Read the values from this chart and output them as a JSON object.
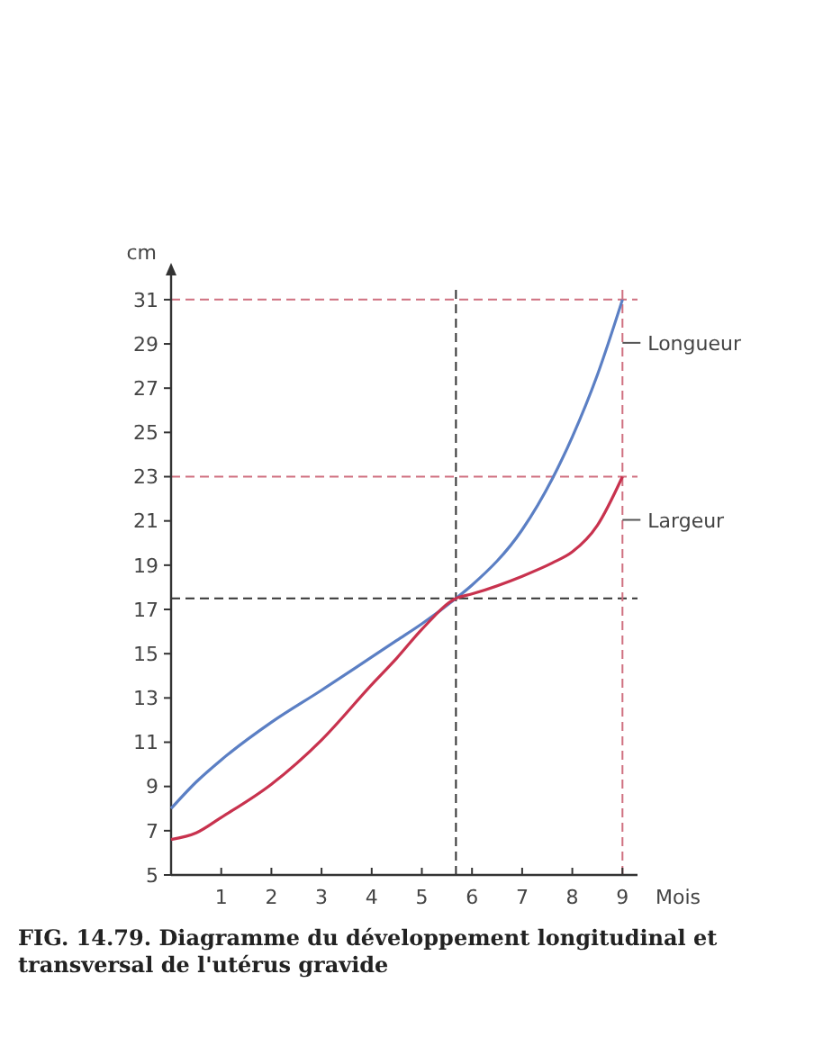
{
  "chart_data": {
    "type": "line",
    "xlabel": "Mois",
    "ylabel": "cm",
    "x": [
      0,
      0.5,
      1,
      2,
      3,
      4,
      4.5,
      5,
      5.68,
      6,
      7,
      7.6,
      8,
      8.5,
      9
    ],
    "series": [
      {
        "name": "Longueur",
        "color": "#5b7fc4",
        "values": [
          8,
          9.2,
          10.2,
          11.9,
          13.35,
          14.85,
          15.6,
          16.35,
          17.5,
          18.1,
          20.6,
          22.9,
          24.8,
          27.6,
          31
        ]
      },
      {
        "name": "Largeur",
        "color": "#c8324e",
        "values": [
          6.6,
          6.9,
          7.6,
          9.1,
          11.1,
          13.6,
          14.8,
          16.1,
          17.5,
          17.7,
          18.5,
          19.1,
          19.6,
          20.8,
          23
        ]
      }
    ],
    "xlim": [
      0,
      9.3
    ],
    "ylim": [
      5,
      32.5
    ],
    "xticks": [
      1,
      2,
      3,
      4,
      5,
      6,
      7,
      8,
      9
    ],
    "yticks": [
      5,
      7,
      9,
      11,
      13,
      15,
      17,
      19,
      21,
      23,
      25,
      27,
      29,
      31
    ],
    "ref_lines": [
      {
        "axis": "y",
        "value": 31,
        "color": "#d07080",
        "line_style": "dashed"
      },
      {
        "axis": "y",
        "value": 23,
        "color": "#d07080",
        "line_style": "dashed"
      },
      {
        "axis": "y",
        "value": 17.5,
        "color": "#333333",
        "line_style": "dashed"
      },
      {
        "axis": "x",
        "value": 5.68,
        "color": "#333333",
        "line_style": "dashed"
      },
      {
        "axis": "x",
        "value": 9,
        "color": "#d07080",
        "line_style": "dashed"
      }
    ],
    "annotations": [
      "FIG. 14.79. Diagramme du développement longitudinal et transversal de l'utérus gravide"
    ],
    "grid": false,
    "legend": false,
    "line_style": "solid",
    "marker": "none"
  }
}
